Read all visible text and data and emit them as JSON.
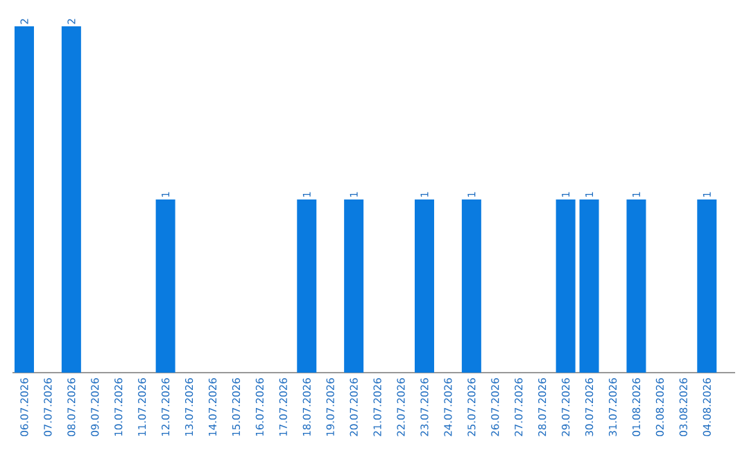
{
  "chart_data": {
    "type": "bar",
    "categories": [
      "06.07.2026",
      "07.07.2026",
      "08.07.2026",
      "09.07.2026",
      "10.07.2026",
      "11.07.2026",
      "12.07.2026",
      "13.07.2026",
      "14.07.2026",
      "15.07.2026",
      "16.07.2026",
      "17.07.2026",
      "18.07.2026",
      "19.07.2026",
      "20.07.2026",
      "21.07.2026",
      "22.07.2026",
      "23.07.2026",
      "24.07.2026",
      "25.07.2026",
      "26.07.2026",
      "27.07.2026",
      "28.07.2026",
      "29.07.2026",
      "30.07.2026",
      "31.07.2026",
      "01.08.2026",
      "02.08.2026",
      "03.08.2026",
      "04.08.2026"
    ],
    "values": [
      2,
      0,
      2,
      0,
      0,
      0,
      1,
      0,
      0,
      0,
      0,
      0,
      1,
      0,
      1,
      0,
      0,
      1,
      0,
      1,
      0,
      0,
      0,
      1,
      1,
      0,
      1,
      0,
      0,
      1
    ],
    "value_labels": [
      "2",
      null,
      "2",
      null,
      null,
      null,
      "1",
      null,
      null,
      null,
      null,
      null,
      "1",
      null,
      "1",
      null,
      null,
      "1",
      null,
      "1",
      null,
      null,
      null,
      "1",
      "1",
      null,
      "1",
      null,
      null,
      "1"
    ],
    "color": "#0a7be0",
    "ylim": [
      0,
      2
    ],
    "tick_labels": "x"
  }
}
